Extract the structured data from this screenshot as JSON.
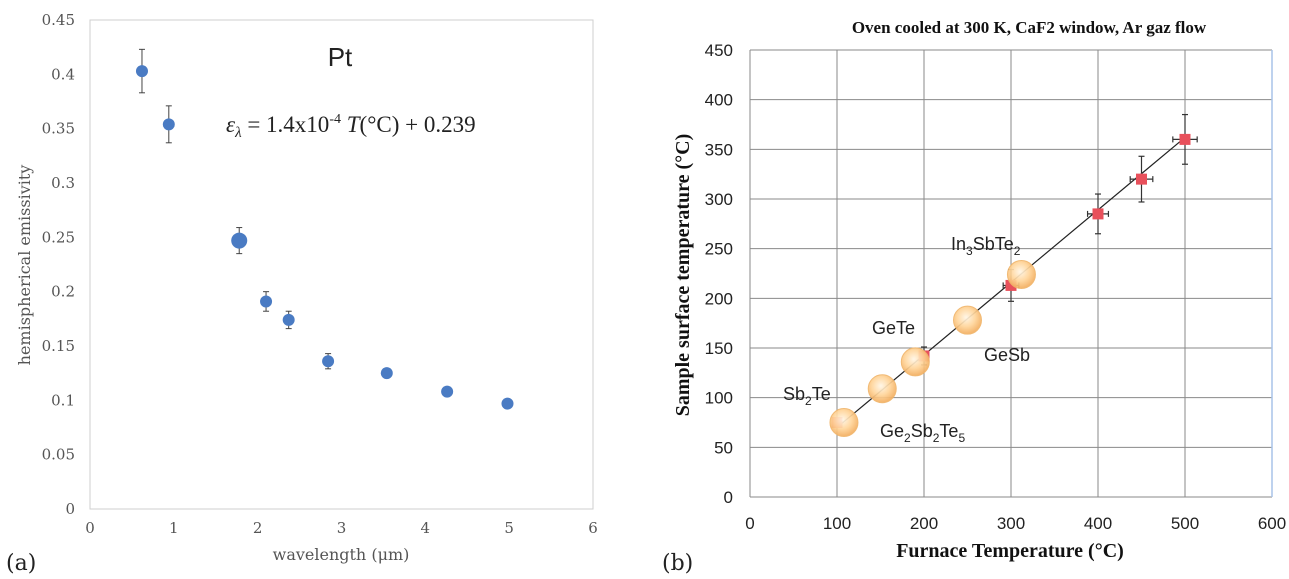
{
  "chart_data": [
    {
      "panel_label": "(a)",
      "type": "scatter",
      "title": "Pt",
      "annotation": {
        "var": "ε",
        "sub": "λ",
        "eq": " = 1.4x10",
        "sup": "-4",
        "tvar": " T",
        "tail": "(°C) + 0.239"
      },
      "xlabel": "wavelength (μm)",
      "ylabel": "hemispherical emissivity",
      "xlim": [
        0,
        6
      ],
      "ylim": [
        0,
        0.45
      ],
      "x_ticks": [
        "0",
        "1",
        "2",
        "3",
        "4",
        "5",
        "6"
      ],
      "y_ticks": [
        "0",
        "0.05",
        "0.1",
        "0.15",
        "0.2",
        "0.25",
        "0.3",
        "0.35",
        "0.4",
        "0.45"
      ],
      "grid": false,
      "marker_color": "#4a7bc3",
      "points": [
        {
          "x": 0.62,
          "y": 0.403,
          "err": 0.02
        },
        {
          "x": 0.94,
          "y": 0.354,
          "err": 0.017
        },
        {
          "x": 1.78,
          "y": 0.247,
          "err": 0.012
        },
        {
          "x": 2.1,
          "y": 0.191,
          "err": 0.009
        },
        {
          "x": 2.37,
          "y": 0.174,
          "err": 0.008
        },
        {
          "x": 2.84,
          "y": 0.136,
          "err": 0.007
        },
        {
          "x": 3.54,
          "y": 0.125,
          "err": 0.004
        },
        {
          "x": 4.26,
          "y": 0.108,
          "err": 0.003
        },
        {
          "x": 4.98,
          "y": 0.097,
          "err": 0.003
        }
      ]
    },
    {
      "panel_label": "(b)",
      "type": "scatter",
      "title": "Oven cooled at 300 K, CaF2 window, Ar gaz flow",
      "xlabel": "Furnace Temperature (°C)",
      "ylabel": "Sample surface temperature (°C)",
      "xlim": [
        0,
        600
      ],
      "ylim": [
        0,
        450
      ],
      "x_ticks": [
        "0",
        "100",
        "200",
        "300",
        "400",
        "500",
        "600"
      ],
      "y_ticks": [
        "0",
        "50",
        "100",
        "150",
        "200",
        "250",
        "300",
        "350",
        "400",
        "450"
      ],
      "grid": true,
      "colors": {
        "marker": "#e8505b",
        "fit_line": "#222222",
        "bubble": "#ffd59a",
        "grid": "#8a8a8a"
      },
      "measurements": [
        {
          "x": 100,
          "y": 75,
          "yerr": 4,
          "xerr": 3
        },
        {
          "x": 200,
          "y": 142,
          "yerr": 9,
          "xerr": 4
        },
        {
          "x": 300,
          "y": 213,
          "yerr": 16,
          "xerr": 9
        },
        {
          "x": 400,
          "y": 285,
          "yerr": 20,
          "xerr": 12
        },
        {
          "x": 450,
          "y": 320,
          "yerr": 23,
          "xerr": 13
        },
        {
          "x": 500,
          "y": 360,
          "yerr": 25,
          "xerr": 14
        }
      ],
      "fit_line": {
        "x": [
          100,
          500
        ],
        "y": [
          70,
          362
        ]
      },
      "materials": [
        {
          "base": "Sb",
          "sub": "2",
          "rest": "Te",
          "x": 108,
          "y": 75
        },
        {
          "base": "Ge",
          "sub": "2",
          "rest": "Sb",
          "sub2": "2",
          "rest2": "Te",
          "sub3": "5",
          "x": 152,
          "y": 109
        },
        {
          "base": "GeTe",
          "x": 190,
          "y": 136
        },
        {
          "base": "GeSb",
          "x": 250,
          "y": 178
        },
        {
          "base": "In",
          "sub": "3",
          "rest": "SbTe",
          "sub2": "2",
          "x": 312,
          "y": 224
        }
      ]
    }
  ]
}
